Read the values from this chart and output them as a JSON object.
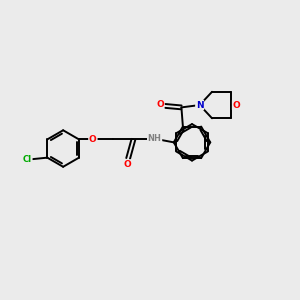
{
  "background_color": "#ebebeb",
  "bond_color": "#000000",
  "atom_colors": {
    "O": "#ff0000",
    "N": "#0000cc",
    "Cl": "#00aa00",
    "H": "#808080"
  },
  "figsize": [
    3.0,
    3.0
  ],
  "dpi": 100,
  "lw": 1.4,
  "fs": 6.5
}
